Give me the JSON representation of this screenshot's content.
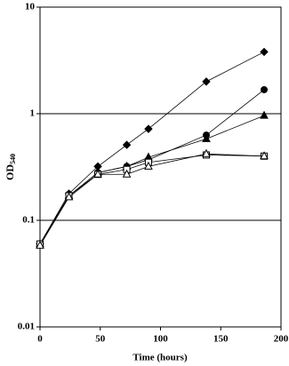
{
  "chart_data": {
    "type": "line",
    "y_label": "OD",
    "y_label_subscript": "540",
    "x_label": "Time (hours)",
    "x": [
      0,
      24,
      48,
      72,
      90,
      138,
      186
    ],
    "series": [
      {
        "color": "#000000",
        "marker": "diamond",
        "filled": true,
        "values": [
          0.06,
          0.178,
          0.32,
          0.51,
          0.72,
          2.0,
          3.8
        ]
      },
      {
        "color": "#000000",
        "marker": "circle",
        "filled": true,
        "values": [
          0.06,
          0.17,
          0.28,
          0.32,
          0.37,
          0.63,
          1.68
        ]
      },
      {
        "color": "#000000",
        "marker": "triangle",
        "filled": true,
        "values": [
          0.06,
          0.17,
          0.28,
          0.32,
          0.39,
          0.58,
          0.96
        ]
      },
      {
        "color": "#000000",
        "marker": "square",
        "filled": false,
        "values": [
          0.06,
          0.17,
          0.27,
          0.3,
          0.35,
          0.41,
          0.4
        ]
      },
      {
        "color": "#000000",
        "marker": "triangle",
        "filled": false,
        "values": [
          0.058,
          0.165,
          0.27,
          0.27,
          0.32,
          0.42,
          0.4
        ]
      }
    ],
    "xlim": [
      0,
      200
    ],
    "xticks": [
      0,
      50,
      100,
      150,
      200
    ],
    "ylim": [
      0.01,
      10
    ],
    "yticks": [
      0.01,
      0.1,
      1,
      10
    ],
    "log_y": true,
    "grid": true
  }
}
